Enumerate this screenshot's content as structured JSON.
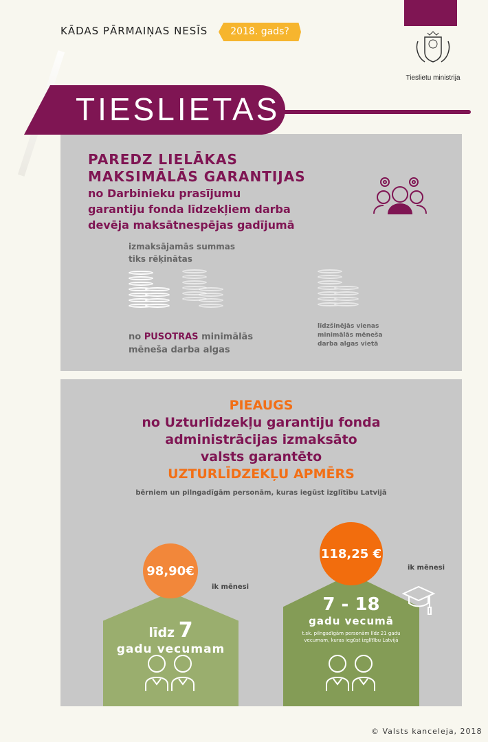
{
  "header": {
    "title": "KĀDAS PĀRMAIŅAS NESĪS",
    "year_tag": "2018. gads?"
  },
  "logo": {
    "caption": "Tieslietu ministrija"
  },
  "banner": {
    "title": "TIESLIETAS"
  },
  "section1": {
    "headline_lines": [
      "PAREDZ LIELĀKAS",
      "MAKSIMĀLĀS GARANTIJAS"
    ],
    "sub_lines": [
      "no Darbinieku prasījumu",
      "garantiju fonda līdzekļiem darba",
      "devēja maksātnespējas gadījumā"
    ],
    "calc_lines": [
      "izmaksājamās summas",
      "tiks rēķinātas"
    ],
    "new_prefix": "no",
    "new_highlight": "PUSOTRAS",
    "new_suffix": "minimālās",
    "new_line2": "mēneša darba algas",
    "previous_lines": [
      "līdzšinējās vienas",
      "minimālās mēneša",
      "darba algas vietā"
    ]
  },
  "section2": {
    "increase": "PIEAUGS",
    "lines": [
      "no Uzturlīdzekļu garantiju fonda",
      "administrācijas izmaksāto",
      "valsts garantēto"
    ],
    "highlight": "UZTURLĪDZEKĻU APMĒRS",
    "subtitle": "bērniem un pilngadīgām personām, kuras iegūst izglītību Latvijā",
    "cards": [
      {
        "amount": "98,90€",
        "per": "ik mēnesi",
        "age_prefix": "līdz",
        "age_number": "7",
        "age_label": "gadu vecumam",
        "note": ""
      },
      {
        "amount": "118,25 €",
        "per": "ik mēnesi",
        "age_prefix": "",
        "age_number": "7 - 18",
        "age_label": "gadu vecumā",
        "note": "t.sk. pilngadīgām personām līdz 21 gadu vecumam, kuras iegūst izglītību Latvijā"
      }
    ]
  },
  "footer": {
    "copyright": "© Valsts kanceleja, 2018"
  },
  "colors": {
    "purple": "#7f1553",
    "orange": "#f26f16",
    "light_orange": "#f2873a",
    "yellow": "#f6b52e",
    "green_light": "#9aae6e",
    "green_dark": "#849c56",
    "gray": "#c8c8c8"
  }
}
